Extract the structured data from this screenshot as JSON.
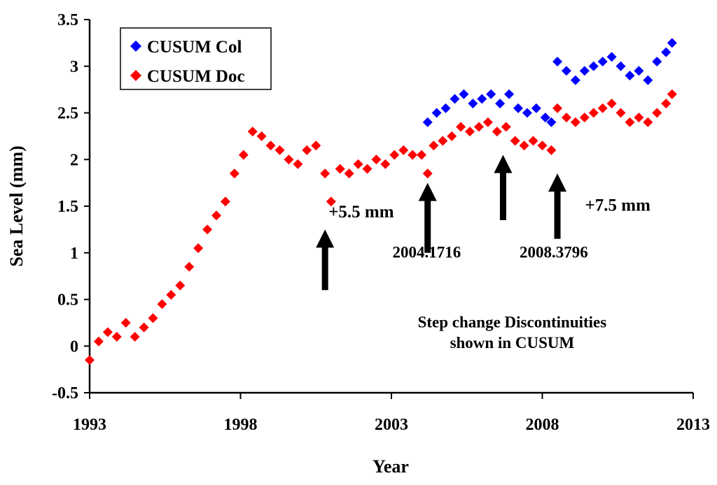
{
  "chart_data": {
    "type": "scatter",
    "title": "",
    "xlabel": "Year",
    "ylabel": "Sea Level (mm)",
    "xlim": [
      1993,
      2013
    ],
    "ylim": [
      -0.5,
      3.5
    ],
    "x_ticks": [
      "1993",
      "1998",
      "2003",
      "2008",
      "2013"
    ],
    "y_ticks": [
      "-0.5",
      "0",
      "0.5",
      "1",
      "1.5",
      "2",
      "2.5",
      "3",
      "3.5"
    ],
    "grid": false,
    "legend_position": "top-left",
    "legend": [
      {
        "label": "CUSUM Col",
        "color": "#0000ff"
      },
      {
        "label": "CUSUM Doc",
        "color": "#ff0000"
      }
    ],
    "series": [
      {
        "name": "CUSUM Col",
        "color": "#0000ff",
        "points": [
          [
            2004.2,
            2.4
          ],
          [
            2004.5,
            2.5
          ],
          [
            2004.8,
            2.55
          ],
          [
            2005.1,
            2.65
          ],
          [
            2005.4,
            2.7
          ],
          [
            2005.7,
            2.6
          ],
          [
            2006.0,
            2.65
          ],
          [
            2006.3,
            2.7
          ],
          [
            2006.6,
            2.6
          ],
          [
            2006.9,
            2.7
          ],
          [
            2007.2,
            2.55
          ],
          [
            2007.5,
            2.5
          ],
          [
            2007.8,
            2.55
          ],
          [
            2008.1,
            2.45
          ],
          [
            2008.3,
            2.4
          ],
          [
            2008.5,
            3.05
          ],
          [
            2008.8,
            2.95
          ],
          [
            2009.1,
            2.85
          ],
          [
            2009.4,
            2.95
          ],
          [
            2009.7,
            3.0
          ],
          [
            2010.0,
            3.05
          ],
          [
            2010.3,
            3.1
          ],
          [
            2010.6,
            3.0
          ],
          [
            2010.9,
            2.9
          ],
          [
            2011.2,
            2.95
          ],
          [
            2011.5,
            2.85
          ],
          [
            2011.8,
            3.05
          ],
          [
            2012.1,
            3.15
          ],
          [
            2012.3,
            3.25
          ]
        ]
      },
      {
        "name": "CUSUM Doc",
        "color": "#ff0000",
        "points": [
          [
            1993.0,
            -0.15
          ],
          [
            1993.3,
            0.05
          ],
          [
            1993.6,
            0.15
          ],
          [
            1993.9,
            0.1
          ],
          [
            1994.2,
            0.25
          ],
          [
            1994.5,
            0.1
          ],
          [
            1994.8,
            0.2
          ],
          [
            1995.1,
            0.3
          ],
          [
            1995.4,
            0.45
          ],
          [
            1995.7,
            0.55
          ],
          [
            1996.0,
            0.65
          ],
          [
            1996.3,
            0.85
          ],
          [
            1996.6,
            1.05
          ],
          [
            1996.9,
            1.25
          ],
          [
            1997.2,
            1.4
          ],
          [
            1997.5,
            1.55
          ],
          [
            1997.8,
            1.85
          ],
          [
            1998.1,
            2.05
          ],
          [
            1998.4,
            2.3
          ],
          [
            1998.7,
            2.25
          ],
          [
            1999.0,
            2.15
          ],
          [
            1999.3,
            2.1
          ],
          [
            1999.6,
            2.0
          ],
          [
            1999.9,
            1.95
          ],
          [
            2000.2,
            2.1
          ],
          [
            2000.5,
            2.15
          ],
          [
            2000.8,
            1.85
          ],
          [
            2001.0,
            1.55
          ],
          [
            2001.3,
            1.9
          ],
          [
            2001.6,
            1.85
          ],
          [
            2001.9,
            1.95
          ],
          [
            2002.2,
            1.9
          ],
          [
            2002.5,
            2.0
          ],
          [
            2002.8,
            1.95
          ],
          [
            2003.1,
            2.05
          ],
          [
            2003.4,
            2.1
          ],
          [
            2003.7,
            2.05
          ],
          [
            2004.0,
            2.05
          ],
          [
            2004.2,
            1.85
          ],
          [
            2004.4,
            2.15
          ],
          [
            2004.7,
            2.2
          ],
          [
            2005.0,
            2.25
          ],
          [
            2005.3,
            2.35
          ],
          [
            2005.6,
            2.3
          ],
          [
            2005.9,
            2.35
          ],
          [
            2006.2,
            2.4
          ],
          [
            2006.5,
            2.3
          ],
          [
            2006.8,
            2.35
          ],
          [
            2007.1,
            2.2
          ],
          [
            2007.4,
            2.15
          ],
          [
            2007.7,
            2.2
          ],
          [
            2008.0,
            2.15
          ],
          [
            2008.3,
            2.1
          ],
          [
            2008.5,
            2.55
          ],
          [
            2008.8,
            2.45
          ],
          [
            2009.1,
            2.4
          ],
          [
            2009.4,
            2.45
          ],
          [
            2009.7,
            2.5
          ],
          [
            2010.0,
            2.55
          ],
          [
            2010.3,
            2.6
          ],
          [
            2010.6,
            2.5
          ],
          [
            2010.9,
            2.4
          ],
          [
            2011.2,
            2.45
          ],
          [
            2011.5,
            2.4
          ],
          [
            2011.8,
            2.5
          ],
          [
            2012.1,
            2.6
          ],
          [
            2012.3,
            2.7
          ]
        ]
      }
    ],
    "annotations": [
      {
        "id": "step1",
        "text": "+5.5 mm",
        "x": 2002.0,
        "y": 1.38
      },
      {
        "id": "step2",
        "text": "2004.1716",
        "x": 2004.17,
        "y": 0.95
      },
      {
        "id": "step3",
        "text": "2008.3796",
        "x": 2008.38,
        "y": 0.95
      },
      {
        "id": "step4",
        "text": "+7.5 mm",
        "x": 2010.5,
        "y": 1.45
      },
      {
        "id": "note",
        "text": "Step change Discontinuities",
        "x": 2007.0,
        "y": 0.2
      },
      {
        "id": "note2",
        "text": "shown in CUSUM",
        "x": 2007.0,
        "y": -0.02
      }
    ],
    "arrows": [
      {
        "x": 2000.8,
        "from_y": 0.6,
        "to_y": 1.25
      },
      {
        "x": 2004.2,
        "from_y": 1.0,
        "to_y": 1.75
      },
      {
        "x": 2006.7,
        "from_y": 1.35,
        "to_y": 2.05
      },
      {
        "x": 2008.5,
        "from_y": 1.15,
        "to_y": 1.85
      }
    ]
  }
}
